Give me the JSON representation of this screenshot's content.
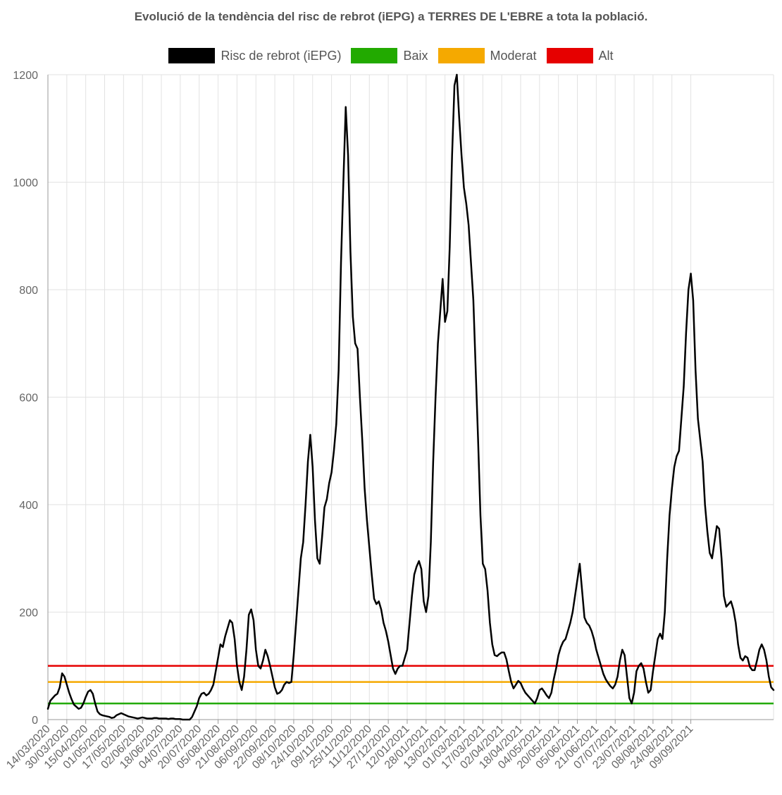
{
  "chart_data": {
    "type": "line",
    "title": "Evolució de la tendència del risc de rebrot (iEPG) a TERRES DE L'EBRE a tota la població.",
    "xlabel": "",
    "ylabel": "",
    "ylim": [
      0,
      1200
    ],
    "yticks": [
      0,
      200,
      400,
      600,
      800,
      1000,
      1200
    ],
    "x_ticks": [
      "14/03/2020",
      "30/03/2020",
      "15/04/2020",
      "01/05/2020",
      "17/05/2020",
      "02/06/2020",
      "18/06/2020",
      "04/07/2020",
      "20/07/2020",
      "05/08/2020",
      "21/08/2020",
      "06/09/2020",
      "22/09/2020",
      "08/10/2020",
      "24/10/2020",
      "09/11/2020",
      "25/11/2020",
      "11/12/2020",
      "27/12/2020",
      "12/01/2021",
      "28/01/2021",
      "13/02/2021",
      "01/03/2021",
      "17/03/2021",
      "02/04/2021",
      "18/04/2021",
      "04/05/2021",
      "20/05/2021",
      "05/06/2021",
      "21/06/2021",
      "07/07/2021",
      "23/07/2021",
      "08/08/2021",
      "24/08/2021",
      "09/09/2021"
    ],
    "grid": true,
    "legend_position": "top",
    "series": [
      {
        "name": "Risc de rebrot (iEPG)",
        "color": "#000000",
        "points": [
          [
            0,
            20
          ],
          [
            2,
            35
          ],
          [
            4,
            40
          ],
          [
            6,
            45
          ],
          [
            8,
            48
          ],
          [
            10,
            60
          ],
          [
            12,
            86
          ],
          [
            14,
            80
          ],
          [
            16,
            65
          ],
          [
            18,
            50
          ],
          [
            20,
            38
          ],
          [
            22,
            28
          ],
          [
            24,
            24
          ],
          [
            26,
            20
          ],
          [
            28,
            22
          ],
          [
            30,
            30
          ],
          [
            32,
            42
          ],
          [
            34,
            52
          ],
          [
            36,
            55
          ],
          [
            38,
            48
          ],
          [
            40,
            30
          ],
          [
            42,
            15
          ],
          [
            44,
            10
          ],
          [
            46,
            8
          ],
          [
            48,
            7
          ],
          [
            50,
            6
          ],
          [
            52,
            5
          ],
          [
            54,
            3
          ],
          [
            56,
            4
          ],
          [
            58,
            8
          ],
          [
            60,
            10
          ],
          [
            62,
            12
          ],
          [
            64,
            10
          ],
          [
            66,
            8
          ],
          [
            68,
            6
          ],
          [
            70,
            5
          ],
          [
            72,
            4
          ],
          [
            74,
            3
          ],
          [
            76,
            2
          ],
          [
            78,
            3
          ],
          [
            80,
            4
          ],
          [
            82,
            3
          ],
          [
            84,
            2
          ],
          [
            86,
            2
          ],
          [
            88,
            2
          ],
          [
            90,
            3
          ],
          [
            92,
            3
          ],
          [
            94,
            2
          ],
          [
            96,
            2
          ],
          [
            98,
            2
          ],
          [
            100,
            2
          ],
          [
            102,
            1
          ],
          [
            104,
            2
          ],
          [
            106,
            2
          ],
          [
            108,
            1
          ],
          [
            110,
            1
          ],
          [
            112,
            1
          ],
          [
            114,
            0
          ],
          [
            116,
            0
          ],
          [
            118,
            0
          ],
          [
            120,
            0
          ],
          [
            122,
            5
          ],
          [
            124,
            15
          ],
          [
            126,
            25
          ],
          [
            128,
            40
          ],
          [
            130,
            48
          ],
          [
            132,
            50
          ],
          [
            134,
            45
          ],
          [
            136,
            48
          ],
          [
            138,
            55
          ],
          [
            140,
            65
          ],
          [
            142,
            90
          ],
          [
            144,
            115
          ],
          [
            146,
            140
          ],
          [
            148,
            135
          ],
          [
            150,
            155
          ],
          [
            152,
            170
          ],
          [
            154,
            185
          ],
          [
            156,
            180
          ],
          [
            158,
            150
          ],
          [
            160,
            100
          ],
          [
            162,
            70
          ],
          [
            164,
            55
          ],
          [
            166,
            80
          ],
          [
            168,
            130
          ],
          [
            170,
            195
          ],
          [
            172,
            205
          ],
          [
            174,
            185
          ],
          [
            176,
            130
          ],
          [
            178,
            100
          ],
          [
            180,
            95
          ],
          [
            182,
            110
          ],
          [
            184,
            130
          ],
          [
            186,
            118
          ],
          [
            188,
            100
          ],
          [
            190,
            80
          ],
          [
            192,
            60
          ],
          [
            194,
            48
          ],
          [
            196,
            50
          ],
          [
            198,
            55
          ],
          [
            200,
            65
          ],
          [
            202,
            70
          ],
          [
            204,
            68
          ],
          [
            206,
            70
          ],
          [
            208,
            120
          ],
          [
            210,
            180
          ],
          [
            212,
            240
          ],
          [
            214,
            300
          ],
          [
            216,
            330
          ],
          [
            218,
            400
          ],
          [
            220,
            480
          ],
          [
            222,
            530
          ],
          [
            224,
            470
          ],
          [
            226,
            370
          ],
          [
            228,
            300
          ],
          [
            230,
            290
          ],
          [
            232,
            340
          ],
          [
            234,
            395
          ],
          [
            236,
            410
          ],
          [
            238,
            440
          ],
          [
            240,
            460
          ],
          [
            242,
            500
          ],
          [
            244,
            550
          ],
          [
            246,
            650
          ],
          [
            248,
            850
          ],
          [
            250,
            1000
          ],
          [
            252,
            1140
          ],
          [
            254,
            1050
          ],
          [
            256,
            870
          ],
          [
            258,
            750
          ],
          [
            260,
            700
          ],
          [
            262,
            690
          ],
          [
            264,
            600
          ],
          [
            266,
            520
          ],
          [
            268,
            430
          ],
          [
            270,
            370
          ],
          [
            272,
            320
          ],
          [
            274,
            270
          ],
          [
            276,
            225
          ],
          [
            278,
            215
          ],
          [
            280,
            220
          ],
          [
            282,
            205
          ],
          [
            284,
            180
          ],
          [
            286,
            165
          ],
          [
            288,
            145
          ],
          [
            290,
            120
          ],
          [
            292,
            95
          ],
          [
            294,
            85
          ],
          [
            296,
            95
          ],
          [
            298,
            100
          ],
          [
            300,
            100
          ],
          [
            302,
            115
          ],
          [
            304,
            130
          ],
          [
            306,
            180
          ],
          [
            308,
            230
          ],
          [
            310,
            270
          ],
          [
            312,
            285
          ],
          [
            314,
            295
          ],
          [
            316,
            280
          ],
          [
            318,
            220
          ],
          [
            320,
            200
          ],
          [
            322,
            230
          ],
          [
            324,
            330
          ],
          [
            326,
            480
          ],
          [
            328,
            600
          ],
          [
            330,
            700
          ],
          [
            332,
            760
          ],
          [
            334,
            820
          ],
          [
            336,
            740
          ],
          [
            338,
            760
          ],
          [
            340,
            880
          ],
          [
            342,
            1050
          ],
          [
            344,
            1180
          ],
          [
            346,
            1200
          ],
          [
            348,
            1120
          ],
          [
            350,
            1050
          ],
          [
            352,
            990
          ],
          [
            354,
            960
          ],
          [
            356,
            920
          ],
          [
            358,
            850
          ],
          [
            360,
            780
          ],
          [
            362,
            650
          ],
          [
            364,
            520
          ],
          [
            366,
            380
          ],
          [
            368,
            290
          ],
          [
            370,
            280
          ],
          [
            372,
            240
          ],
          [
            374,
            180
          ],
          [
            376,
            140
          ],
          [
            378,
            120
          ],
          [
            380,
            118
          ],
          [
            382,
            122
          ],
          [
            384,
            125
          ],
          [
            386,
            125
          ],
          [
            388,
            112
          ],
          [
            390,
            90
          ],
          [
            392,
            70
          ],
          [
            394,
            58
          ],
          [
            396,
            65
          ],
          [
            398,
            72
          ],
          [
            400,
            68
          ],
          [
            402,
            58
          ],
          [
            404,
            50
          ],
          [
            406,
            45
          ],
          [
            408,
            40
          ],
          [
            410,
            35
          ],
          [
            412,
            30
          ],
          [
            414,
            40
          ],
          [
            416,
            55
          ],
          [
            418,
            58
          ],
          [
            420,
            52
          ],
          [
            422,
            45
          ],
          [
            424,
            40
          ],
          [
            426,
            50
          ],
          [
            428,
            75
          ],
          [
            430,
            95
          ],
          [
            432,
            120
          ],
          [
            434,
            135
          ],
          [
            436,
            145
          ],
          [
            438,
            150
          ],
          [
            440,
            165
          ],
          [
            442,
            180
          ],
          [
            444,
            200
          ],
          [
            446,
            230
          ],
          [
            448,
            260
          ],
          [
            450,
            290
          ],
          [
            452,
            240
          ],
          [
            454,
            190
          ],
          [
            456,
            180
          ],
          [
            458,
            175
          ],
          [
            460,
            165
          ],
          [
            462,
            150
          ],
          [
            464,
            130
          ],
          [
            466,
            115
          ],
          [
            468,
            100
          ],
          [
            470,
            85
          ],
          [
            472,
            75
          ],
          [
            474,
            68
          ],
          [
            476,
            62
          ],
          [
            478,
            58
          ],
          [
            480,
            65
          ],
          [
            482,
            80
          ],
          [
            484,
            110
          ],
          [
            486,
            130
          ],
          [
            488,
            120
          ],
          [
            490,
            80
          ],
          [
            492,
            40
          ],
          [
            494,
            30
          ],
          [
            496,
            50
          ],
          [
            498,
            90
          ],
          [
            500,
            100
          ],
          [
            502,
            105
          ],
          [
            504,
            95
          ],
          [
            506,
            70
          ],
          [
            508,
            50
          ],
          [
            510,
            55
          ],
          [
            512,
            90
          ],
          [
            514,
            120
          ],
          [
            516,
            150
          ],
          [
            518,
            160
          ],
          [
            520,
            150
          ],
          [
            522,
            200
          ],
          [
            524,
            300
          ],
          [
            526,
            380
          ],
          [
            528,
            430
          ],
          [
            530,
            470
          ],
          [
            532,
            490
          ],
          [
            534,
            500
          ],
          [
            536,
            560
          ],
          [
            538,
            620
          ],
          [
            540,
            720
          ],
          [
            542,
            800
          ],
          [
            544,
            830
          ],
          [
            546,
            780
          ],
          [
            548,
            650
          ],
          [
            550,
            560
          ],
          [
            552,
            520
          ],
          [
            554,
            480
          ],
          [
            556,
            400
          ],
          [
            558,
            350
          ],
          [
            560,
            310
          ],
          [
            562,
            300
          ],
          [
            564,
            330
          ],
          [
            566,
            360
          ],
          [
            568,
            355
          ],
          [
            570,
            300
          ],
          [
            572,
            230
          ],
          [
            574,
            210
          ],
          [
            576,
            215
          ],
          [
            578,
            220
          ],
          [
            580,
            205
          ],
          [
            582,
            180
          ],
          [
            584,
            140
          ],
          [
            586,
            115
          ],
          [
            588,
            110
          ],
          [
            590,
            118
          ],
          [
            592,
            115
          ],
          [
            594,
            98
          ],
          [
            596,
            92
          ],
          [
            598,
            92
          ],
          [
            600,
            110
          ],
          [
            602,
            130
          ],
          [
            604,
            140
          ],
          [
            606,
            130
          ],
          [
            608,
            110
          ],
          [
            610,
            80
          ],
          [
            612,
            60
          ],
          [
            614,
            55
          ]
        ]
      },
      {
        "name": "Baix",
        "color": "#22aa00",
        "constant": 30
      },
      {
        "name": "Moderat",
        "color": "#f5a900",
        "constant": 70
      },
      {
        "name": "Alt",
        "color": "#e60000",
        "constant": 100
      }
    ]
  }
}
